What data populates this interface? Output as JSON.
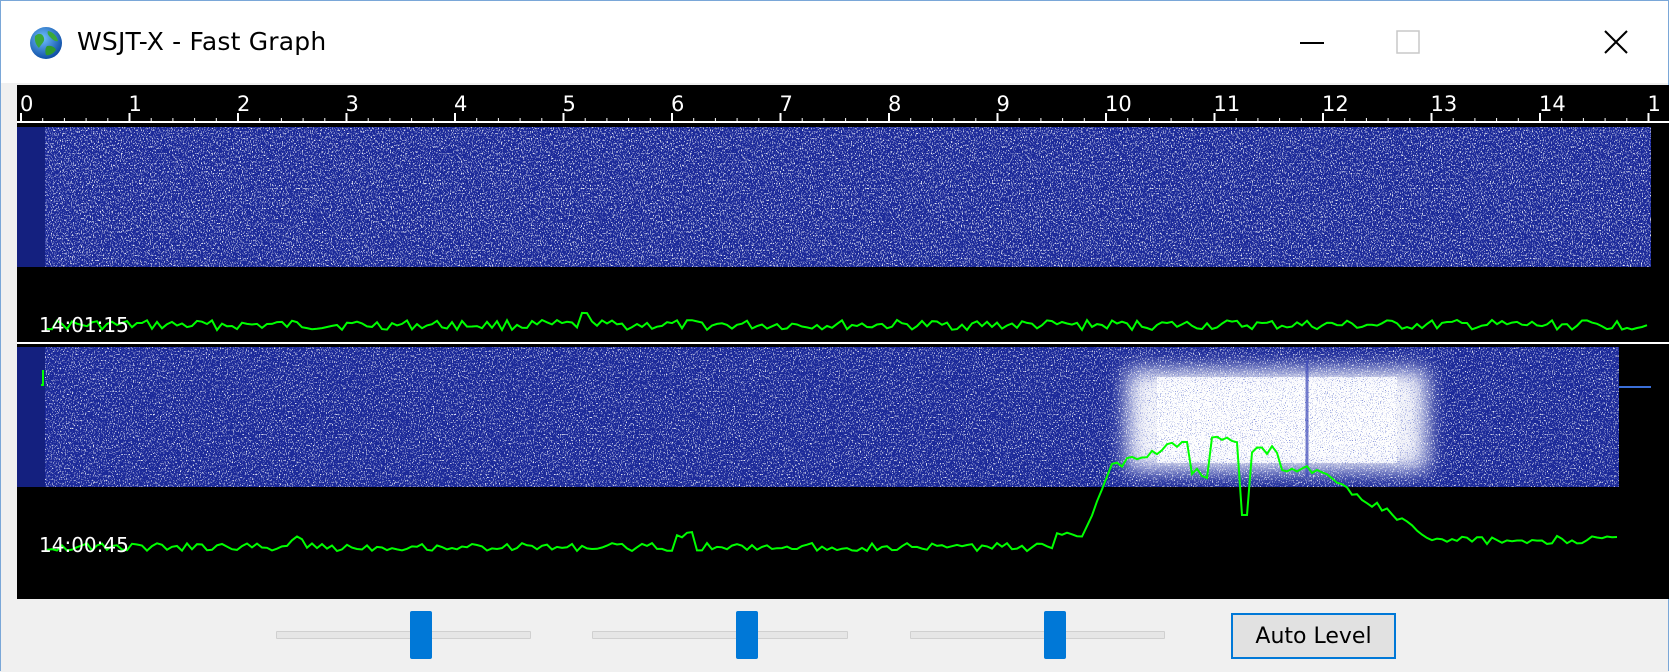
{
  "window": {
    "title": "WSJT-X - Fast Graph",
    "icon": "globe-icon",
    "controls": [
      "minimize-icon",
      "maximize-icon",
      "close-icon"
    ]
  },
  "graph": {
    "axis_ticks": [
      "0",
      "1",
      "2",
      "3",
      "4",
      "5",
      "6",
      "7",
      "8",
      "9",
      "10",
      "11",
      "12",
      "13",
      "14",
      "1"
    ],
    "rows": [
      {
        "timestamp": "14:01:15"
      },
      {
        "timestamp": "14:00:45"
      }
    ],
    "colors": {
      "background": "#000000",
      "waterfall": "#1c2a9a",
      "trace": "#00ff00",
      "signal": "#ffffff"
    }
  },
  "controls": {
    "sliders": [
      {
        "name": "gain-slider",
        "value": 0.57
      },
      {
        "name": "zero-slider",
        "value": 0.61
      },
      {
        "name": "range-slider",
        "value": 0.58
      }
    ],
    "auto_level_label": "Auto Level"
  }
}
